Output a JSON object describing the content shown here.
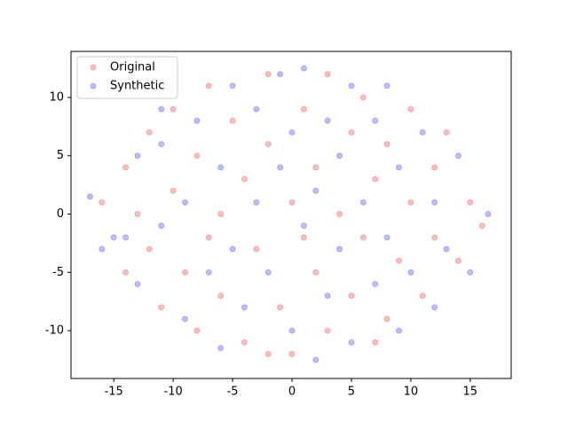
{
  "chart_data": {
    "type": "scatter",
    "xlim": [
      -18.6,
      18.45
    ],
    "ylim": [
      -14.1,
      13.95
    ],
    "xticks": [
      -15,
      -10,
      -5,
      0,
      5,
      10,
      15
    ],
    "yticks": [
      -10,
      -5,
      0,
      5,
      10
    ],
    "legend": "upper left",
    "series": [
      {
        "name": "Original",
        "color": "#ff0000",
        "x": [
          -16,
          -14,
          -14,
          -12,
          -12,
          -11,
          -10,
          -10,
          -9,
          -8,
          -8,
          -7,
          -6,
          -6,
          -5,
          -4,
          -4,
          -3,
          -2,
          -2,
          -1,
          0,
          0,
          1,
          2,
          2,
          3,
          3,
          4,
          5,
          5,
          6,
          6,
          7,
          8,
          8,
          9,
          10,
          10,
          11,
          12,
          12,
          13,
          14,
          15,
          16,
          -13,
          -7,
          1,
          7,
          -2
        ],
        "y": [
          1,
          4,
          -5,
          7,
          -3,
          -8,
          2,
          9,
          -5,
          5,
          -10,
          11,
          0,
          -7,
          8,
          -11,
          3,
          -3,
          12,
          6,
          -8,
          1,
          -12,
          9,
          -5,
          4,
          -10,
          12,
          0,
          7,
          -7,
          -2,
          10,
          3,
          -9,
          6,
          -4,
          1,
          9,
          -7,
          4,
          -2,
          7,
          -4,
          1,
          -1,
          0,
          -2,
          -2,
          -11,
          -12
        ]
      },
      {
        "name": "Synthetic",
        "color": "#0000ff",
        "x": [
          -17,
          -15,
          -13,
          -13,
          -11,
          -11,
          -9,
          -9,
          -8,
          -7,
          -6,
          -6,
          -5,
          -5,
          -4,
          -3,
          -3,
          -2,
          -1,
          -1,
          0,
          0,
          1,
          1,
          2,
          2,
          3,
          3,
          4,
          4,
          5,
          5,
          6,
          7,
          7,
          8,
          9,
          9,
          10,
          11,
          12,
          12,
          13,
          14,
          15,
          16.5,
          -16,
          -14,
          -11,
          8
        ],
        "y": [
          1.5,
          -2,
          -6,
          5,
          -1,
          6,
          -9,
          1,
          8,
          -5,
          -11.5,
          4,
          11,
          -3,
          -8,
          1,
          9,
          -5,
          12,
          4,
          -10,
          7,
          -1,
          12.5,
          -12.5,
          2,
          -7,
          8,
          -3,
          5,
          -11,
          11,
          1,
          -6,
          8,
          -2,
          4,
          -10,
          -5,
          7,
          -8,
          1,
          -3,
          5,
          -5,
          0,
          -3,
          -2,
          9,
          11
        ]
      }
    ]
  }
}
